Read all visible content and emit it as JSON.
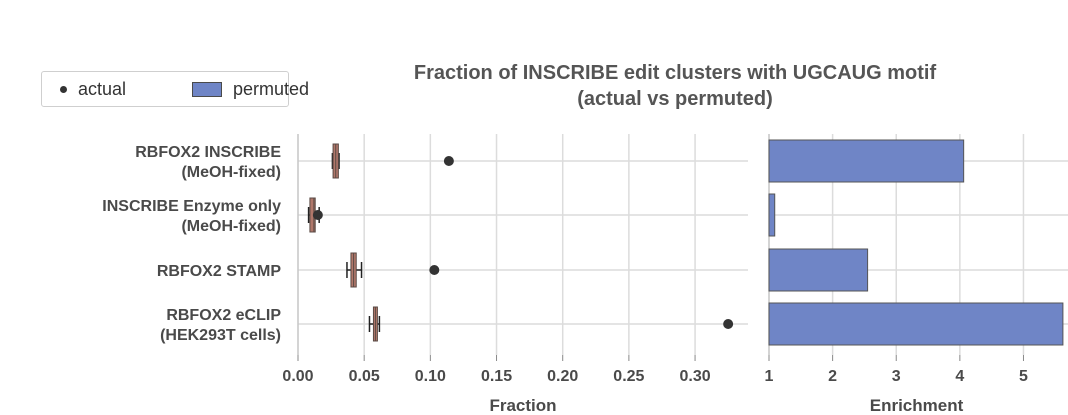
{
  "title_line1": "Fraction of INSCRIBE edit clusters with UGCAUG motif",
  "title_line2": "(actual vs permuted)",
  "legend": {
    "actual": "actual",
    "permuted": "permuted"
  },
  "colors": {
    "bar": "#6f85c6",
    "box": "#b0776a",
    "point": "#333333",
    "grid": "#dcdcdc",
    "text": "#4a4a4a"
  },
  "chart_data": [
    {
      "type": "box",
      "xlabel": "Fraction",
      "xlim": [
        0.0,
        0.34
      ],
      "xticks": [
        0.0,
        0.05,
        0.1,
        0.15,
        0.2,
        0.25,
        0.3
      ],
      "xtick_labels": [
        "0.00",
        "0.05",
        "0.10",
        "0.15",
        "0.20",
        "0.25",
        "0.30"
      ],
      "categories": [
        [
          "RBFOX2 INSCRIBE",
          "(MeOH-fixed)"
        ],
        [
          "INSCRIBE Enzyme only",
          "(MeOH-fixed)"
        ],
        [
          "RBFOX2 STAMP"
        ],
        [
          "RBFOX2 eCLIP",
          "(HEK293T cells)"
        ]
      ],
      "actual": [
        0.114,
        0.015,
        0.103,
        0.325
      ],
      "permuted": [
        {
          "whisker_low": 0.026,
          "q1": 0.0265,
          "median": 0.0285,
          "q3": 0.0305,
          "whisker_high": 0.031
        },
        {
          "whisker_low": 0.008,
          "q1": 0.009,
          "median": 0.012,
          "q3": 0.013,
          "whisker_high": 0.016
        },
        {
          "whisker_low": 0.037,
          "q1": 0.04,
          "median": 0.042,
          "q3": 0.044,
          "whisker_high": 0.048
        },
        {
          "whisker_low": 0.054,
          "q1": 0.057,
          "median": 0.0585,
          "q3": 0.06,
          "whisker_high": 0.0615
        }
      ],
      "grid": true
    },
    {
      "type": "bar",
      "orientation": "horizontal",
      "xlabel": "Enrichment",
      "xlim": [
        1.0,
        5.7
      ],
      "xticks": [
        1,
        2,
        3,
        4,
        5
      ],
      "xtick_labels": [
        "1",
        "2",
        "3",
        "4",
        "5"
      ],
      "values": [
        4.06,
        1.09,
        2.55,
        5.62
      ],
      "grid": true
    }
  ]
}
